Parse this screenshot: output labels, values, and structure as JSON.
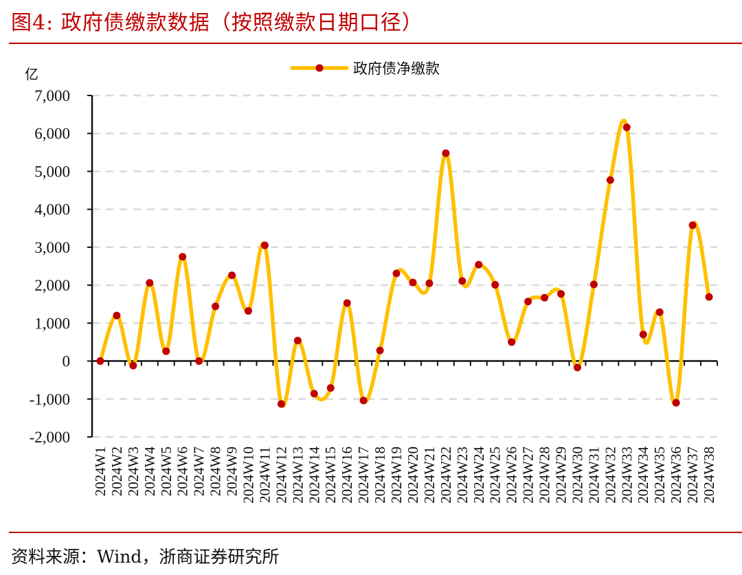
{
  "header": {
    "title": "图4:  政府债缴款数据（按照缴款日期口径）"
  },
  "footer": {
    "source": "资料来源：Wind，浙商证券研究所"
  },
  "colors": {
    "accent": "#c00000",
    "line": "#ffc000",
    "marker": "#c00000",
    "grid": "#d9d9d9",
    "axis": "#111111"
  },
  "chart_data": {
    "type": "line",
    "title": "政府债缴款数据（按照缴款日期口径）",
    "xlabel": "",
    "ylabel": "亿",
    "ylim": [
      -2000,
      7000
    ],
    "yticks": [
      -2000,
      -1000,
      0,
      1000,
      2000,
      3000,
      4000,
      5000,
      6000,
      7000
    ],
    "ytick_labels": [
      "-2,000",
      "-1,000",
      "0",
      "1,000",
      "2,000",
      "3,000",
      "4,000",
      "5,000",
      "6,000",
      "7,000"
    ],
    "grid": true,
    "smooth": true,
    "legend_position": "top-center",
    "categories": [
      "2024W1",
      "2024W2",
      "2024W3",
      "2024W4",
      "2024W5",
      "2024W6",
      "2024W7",
      "2024W8",
      "2024W9",
      "2024W10",
      "2024W11",
      "2024W12",
      "2024W13",
      "2024W14",
      "2024W15",
      "2024W16",
      "2024W17",
      "2024W18",
      "2024W19",
      "2024W20",
      "2024W21",
      "2024W22",
      "2024W23",
      "2024W24",
      "2024W25",
      "2024W26",
      "2024W27",
      "2024W28",
      "2024W29",
      "2024W30",
      "2024W31",
      "2024W32",
      "2024W33",
      "2024W34",
      "2024W35",
      "2024W36",
      "2024W37",
      "2024W38"
    ],
    "series": [
      {
        "name": "政府债净缴款",
        "values": [
          0,
          1200,
          -120,
          2060,
          260,
          2750,
          0,
          1440,
          2260,
          1320,
          3050,
          -1130,
          540,
          -860,
          -710,
          1530,
          -1040,
          280,
          2310,
          2070,
          2050,
          5480,
          2110,
          2540,
          2010,
          500,
          1570,
          1670,
          1770,
          -170,
          2020,
          4770,
          6160,
          700,
          1290,
          -1100,
          3580,
          1690
        ]
      }
    ]
  }
}
